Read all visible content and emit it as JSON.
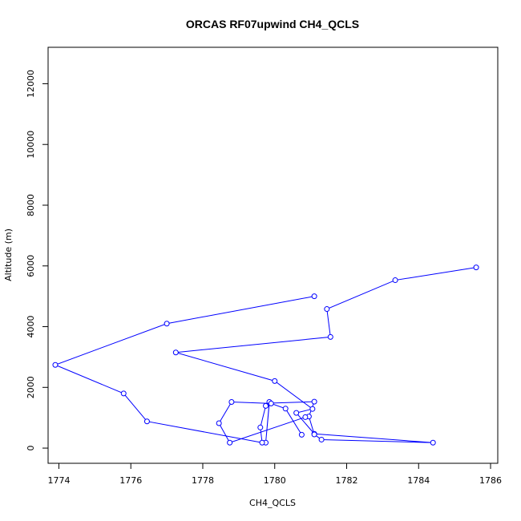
{
  "chart_data": {
    "type": "line",
    "title": "ORCAS RF07upwind CH4_QCLS",
    "xlabel": "CH4_QCLS",
    "ylabel": "Altitude (m)",
    "xlim": [
      1773.7,
      1786.2
    ],
    "ylim": [
      -500,
      13200
    ],
    "xticks": [
      1774,
      1776,
      1778,
      1780,
      1782,
      1784,
      1786
    ],
    "yticks": [
      0,
      2000,
      4000,
      6000,
      8000,
      10000,
      12000
    ],
    "grid": false,
    "series": [
      {
        "color": "#0000ff",
        "marker": "open-circle",
        "points": [
          {
            "x": 1785.6,
            "y": 5950
          },
          {
            "x": 1783.35,
            "y": 5530
          },
          {
            "x": 1781.45,
            "y": 4580
          },
          {
            "x": 1781.55,
            "y": 3660
          },
          {
            "x": 1777.25,
            "y": 3150
          },
          {
            "x": 1780.0,
            "y": 2210
          },
          {
            "x": 1781.05,
            "y": 1290
          },
          {
            "x": 1780.6,
            "y": 1160
          },
          {
            "x": 1781.1,
            "y": 470
          },
          {
            "x": 1784.4,
            "y": 180
          },
          {
            "x": 1781.3,
            "y": 280
          },
          {
            "x": 1781.1,
            "y": 450
          },
          {
            "x": 1780.95,
            "y": 1040
          },
          {
            "x": 1781.1,
            "y": 1530
          },
          {
            "x": 1779.85,
            "y": 1480
          },
          {
            "x": 1779.75,
            "y": 180
          },
          {
            "x": 1779.85,
            "y": 1520
          },
          {
            "x": 1779.75,
            "y": 1390
          },
          {
            "x": 1779.6,
            "y": 680
          },
          {
            "x": 1779.65,
            "y": 180
          },
          {
            "x": 1776.45,
            "y": 880
          },
          {
            "x": 1775.8,
            "y": 1800
          },
          {
            "x": 1773.9,
            "y": 2740
          },
          {
            "x": 1777.0,
            "y": 4100
          },
          {
            "x": 1781.1,
            "y": 5000
          }
        ]
      },
      {
        "color": "#0000ff",
        "marker": "open-circle",
        "points": [
          {
            "x": 1780.75,
            "y": 440
          },
          {
            "x": 1780.3,
            "y": 1300
          },
          {
            "x": 1779.9,
            "y": 1470
          },
          {
            "x": 1778.8,
            "y": 1520
          },
          {
            "x": 1778.45,
            "y": 820
          },
          {
            "x": 1778.75,
            "y": 180
          },
          {
            "x": 1780.85,
            "y": 1020
          }
        ]
      }
    ]
  }
}
